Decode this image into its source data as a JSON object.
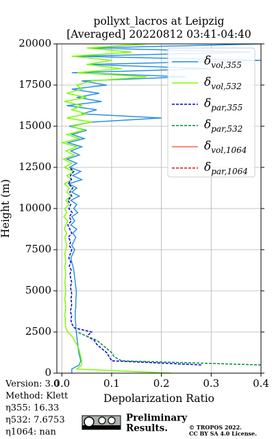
{
  "chart_data": {
    "type": "profile",
    "title": "pollyxt_lacros at Leipzig",
    "subtitle": "[Averaged] 20220812 03:41-04:40",
    "xlabel": "Depolarization Ratio",
    "ylabel": "Height (m)",
    "xlim": [
      -0.01,
      0.4
    ],
    "ylim": [
      0,
      20000
    ],
    "xticks": [
      {
        "value": 0,
        "label": "0.0"
      },
      0.1,
      0.2,
      0.3,
      0.4
    ],
    "yticks": [
      0,
      2500,
      5000,
      7500,
      10000,
      12500,
      15000,
      17500,
      20000
    ],
    "grid": true,
    "legend": "upper right",
    "y": [
      0,
      250,
      500,
      750,
      1000,
      1250,
      1500,
      1750,
      2000,
      2250,
      2500,
      2750,
      3000,
      3250,
      3500,
      3750,
      4000,
      4250,
      4500,
      4750,
      5000,
      5250,
      5500,
      5750,
      6000,
      6250,
      6500,
      6750,
      7000,
      7250,
      7500,
      7750,
      8000,
      8250,
      8500,
      8750,
      9000,
      9250,
      9500,
      9750,
      10000,
      10250,
      10500,
      10750,
      11000,
      11250,
      11500,
      11750,
      12000,
      12250,
      12500,
      12750,
      13000,
      13250,
      13500,
      13750,
      14000,
      14250,
      14500,
      14750,
      15000,
      15250,
      15500,
      15750,
      16000,
      16250,
      16500,
      16750,
      17000,
      17250,
      17500,
      17750,
      18000,
      18250,
      18500,
      18750,
      19000,
      19250,
      19500,
      19750,
      20000
    ],
    "series": [
      {
        "name": "δvol,355",
        "color": "#2b8fe6",
        "linestyle": "solid",
        "values": [
          0.02,
          0.02,
          0.035,
          0.038,
          0.036,
          0.034,
          0.033,
          0.032,
          0.031,
          0.03,
          0.029,
          0.028,
          0.028,
          0.027,
          0.027,
          0.027,
          0.028,
          0.028,
          0.028,
          0.029,
          0.029,
          0.028,
          0.027,
          0.026,
          0.025,
          0.024,
          0.022,
          0.02,
          0.018,
          0.022,
          0.026,
          0.02,
          0.024,
          0.028,
          0.022,
          0.03,
          0.018,
          0.026,
          0.02,
          0.032,
          0.024,
          0.03,
          0.018,
          0.035,
          0.02,
          0.03,
          0.014,
          0.04,
          0.022,
          0.038,
          0.016,
          0.03,
          0.01,
          0.035,
          0.018,
          0.04,
          0.012,
          0.045,
          0.02,
          0.05,
          0.015,
          0.06,
          0.2,
          0.04,
          0.07,
          0.01,
          0.08,
          0.03,
          0.075,
          0.02,
          0.09,
          0.04,
          0.25,
          0.02,
          0.3,
          0.05,
          0.4,
          0.03,
          0.38,
          0.06,
          0.4
        ]
      },
      {
        "name": "δvol,532",
        "color": "#7cfc00",
        "linestyle": "solid",
        "values": [
          0.22,
          0.03,
          0.04,
          0.04,
          0.038,
          0.036,
          0.034,
          0.03,
          0.025,
          0.02,
          0.012,
          0.008,
          0.007,
          0.007,
          0.006,
          0.007,
          0.008,
          0.007,
          0.006,
          0.007,
          0.008,
          0.007,
          0.006,
          0.007,
          0.008,
          0.007,
          0.006,
          0.008,
          0.007,
          0.006,
          0.008,
          0.01,
          0.008,
          0.006,
          0.01,
          0.005,
          0.008,
          0.012,
          0.004,
          0.01,
          0.006,
          0.014,
          0.008,
          0.018,
          0.01,
          0.015,
          0.005,
          0.02,
          0.01,
          0.025,
          0.005,
          0.02,
          0.003,
          0.025,
          0.008,
          0.03,
          0.0,
          0.035,
          0.01,
          0.045,
          0.02,
          0.06,
          0.01,
          0.05,
          0.02,
          0.04,
          0.005,
          0.05,
          0.01,
          0.04,
          0.03,
          0.06,
          0.17,
          0.03,
          0.12,
          0.05,
          0.1,
          0.02,
          0.14,
          0.05,
          0.17
        ]
      },
      {
        "name": "δpar,355",
        "color": "#0000cc",
        "linestyle": "dashed",
        "values": [
          null,
          null,
          0.28,
          0.1,
          0.095,
          0.09,
          0.08,
          0.07,
          0.065,
          0.05,
          0.06,
          0.025,
          0.02,
          0.018,
          0.02,
          0.017,
          0.019,
          0.02,
          0.018,
          0.02,
          0.019,
          0.017,
          0.02,
          0.018,
          0.016,
          0.019,
          0.015,
          0.018,
          0.014,
          0.017,
          0.02,
          0.015,
          0.018,
          0.013,
          0.02,
          0.016,
          0.012,
          0.019,
          0.015,
          0.021,
          0.014,
          0.018,
          0.012,
          0.02,
          0.016,
          0.022,
          0.013,
          0.019,
          0.017,
          0.024,
          0.015,
          null,
          null,
          null,
          null,
          null,
          null,
          null,
          null,
          null,
          null,
          null,
          null,
          null,
          null,
          null,
          null,
          null,
          null,
          null,
          null,
          null,
          null,
          null,
          null,
          null,
          null,
          null,
          null,
          null,
          null
        ]
      },
      {
        "name": "δpar,532",
        "color": "#008a3e",
        "linestyle": "dashed",
        "values": [
          null,
          null,
          0.4,
          0.12,
          0.105,
          0.1,
          0.09,
          0.08,
          0.07,
          0.05,
          0.03,
          null,
          null,
          null,
          null,
          null,
          null,
          null,
          null,
          null,
          null,
          null,
          null,
          null,
          null,
          null,
          null,
          null,
          null,
          null,
          null,
          null,
          null,
          null,
          null,
          null,
          null,
          null,
          null,
          null,
          null,
          null,
          null,
          null,
          null,
          null,
          null,
          null,
          null,
          null,
          null,
          null,
          null,
          null,
          null,
          null,
          null,
          null,
          null,
          null,
          null,
          null,
          null,
          null,
          null,
          null,
          null,
          null,
          null,
          null,
          null,
          null,
          null,
          null,
          null,
          null,
          null,
          null,
          null,
          null,
          null
        ]
      },
      {
        "name": "δvol,1064",
        "color": "#ff6347",
        "linestyle": "solid",
        "values": [
          null,
          null,
          null,
          null,
          null,
          null,
          null,
          null,
          null,
          null,
          null,
          null,
          null,
          null,
          null,
          null,
          null,
          null,
          null,
          null,
          null,
          null,
          null,
          null,
          null,
          null,
          null,
          null,
          null,
          null,
          null,
          null,
          null,
          null,
          null,
          null,
          null,
          null,
          null,
          null,
          null,
          null,
          null,
          null,
          null,
          null,
          null,
          null,
          null,
          null,
          null,
          null,
          null,
          null,
          null,
          null,
          null,
          null,
          null,
          null,
          null,
          null,
          null,
          null,
          null,
          null,
          null,
          null,
          null,
          null,
          null,
          null,
          null,
          null,
          null,
          null,
          null,
          null,
          null,
          null,
          null
        ]
      },
      {
        "name": "δpar,1064",
        "color": "#d21a1a",
        "linestyle": "dashed",
        "values": [
          null,
          null,
          null,
          null,
          null,
          null,
          null,
          null,
          null,
          null,
          null,
          null,
          null,
          null,
          null,
          null,
          null,
          null,
          null,
          null,
          null,
          null,
          null,
          null,
          null,
          null,
          null,
          null,
          null,
          null,
          null,
          null,
          null,
          null,
          null,
          null,
          null,
          null,
          null,
          null,
          null,
          null,
          null,
          null,
          null,
          null,
          null,
          null,
          null,
          null,
          null,
          null,
          null,
          null,
          null,
          null,
          null,
          null,
          null,
          null,
          null,
          null,
          null,
          null,
          null,
          null,
          null,
          null,
          null,
          null,
          null,
          null,
          null,
          null,
          null,
          null,
          null,
          null,
          null,
          null,
          null
        ]
      }
    ],
    "annotations": [
      "Version: 3.0",
      "Method: Klett",
      "η355:  16.33",
      "η532: 7.6753",
      "η1064:    nan"
    ],
    "preliminary": [
      "Preliminary",
      "Results."
    ],
    "license": [
      "© TROPOS 2022.",
      "CC BY SA 4.0 License."
    ]
  }
}
